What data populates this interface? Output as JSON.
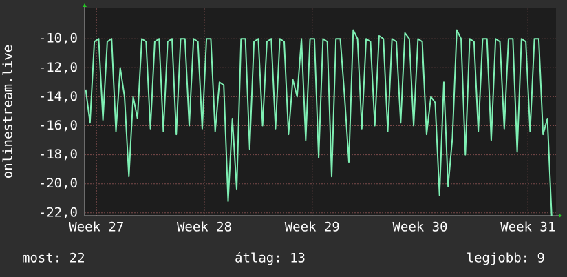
{
  "chart_data": {
    "type": "line",
    "y_label": "onlinestream.live",
    "xlim": [
      26.89,
      31.26
    ],
    "xticks": [
      {
        "value": 27,
        "label": "Week 27"
      },
      {
        "value": 28,
        "label": "Week 28"
      },
      {
        "value": 29,
        "label": "Week 29"
      },
      {
        "value": 30,
        "label": "Week 30"
      },
      {
        "value": 31,
        "label": "Week 31"
      }
    ],
    "ylim": [
      -22.2,
      -7.9
    ],
    "yticks": [
      {
        "value": -22,
        "label": "-22,0"
      },
      {
        "value": -20,
        "label": "-20,0"
      },
      {
        "value": -18,
        "label": "-18,0"
      },
      {
        "value": -16,
        "label": "-16,0"
      },
      {
        "value": -14,
        "label": "-14,0"
      },
      {
        "value": -12,
        "label": "-12,0"
      },
      {
        "value": -10,
        "label": "-10,0"
      }
    ],
    "grid": true,
    "x": [
      26.9,
      26.94,
      26.98,
      27.02,
      27.06,
      27.1,
      27.14,
      27.18,
      27.22,
      27.26,
      27.3,
      27.34,
      27.38,
      27.42,
      27.46,
      27.5,
      27.54,
      27.58,
      27.62,
      27.66,
      27.7,
      27.74,
      27.78,
      27.82,
      27.86,
      27.9,
      27.94,
      27.98,
      28.02,
      28.06,
      28.1,
      28.14,
      28.18,
      28.22,
      28.26,
      28.3,
      28.34,
      28.38,
      28.42,
      28.46,
      28.5,
      28.54,
      28.58,
      28.62,
      28.66,
      28.7,
      28.74,
      28.78,
      28.82,
      28.86,
      28.9,
      28.94,
      28.98,
      29.02,
      29.06,
      29.1,
      29.14,
      29.18,
      29.22,
      29.26,
      29.3,
      29.34,
      29.38,
      29.42,
      29.46,
      29.5,
      29.54,
      29.58,
      29.62,
      29.66,
      29.7,
      29.74,
      29.78,
      29.82,
      29.86,
      29.9,
      29.94,
      29.98,
      30.02,
      30.06,
      30.1,
      30.14,
      30.18,
      30.22,
      30.26,
      30.3,
      30.34,
      30.38,
      30.42,
      30.46,
      30.5,
      30.54,
      30.58,
      30.62,
      30.66,
      30.7,
      30.74,
      30.78,
      30.82,
      30.86,
      30.9,
      30.94,
      30.98,
      31.02,
      31.06,
      31.1,
      31.14,
      31.18,
      31.22
    ],
    "series": [
      {
        "color": "#7ff0b4",
        "values": [
          -13.5,
          -15.8,
          -10.2,
          -10.0,
          -15.6,
          -10.2,
          -10.0,
          -16.4,
          -12.0,
          -14.0,
          -19.5,
          -14.0,
          -15.5,
          -10.0,
          -10.2,
          -16.2,
          -10.2,
          -10.0,
          -16.4,
          -10.2,
          -10.0,
          -16.6,
          -10.0,
          -10.0,
          -16.0,
          -10.0,
          -10.2,
          -16.2,
          -10.0,
          -10.0,
          -16.4,
          -13.0,
          -13.2,
          -21.2,
          -15.5,
          -20.4,
          -10.0,
          -10.0,
          -17.6,
          -10.2,
          -10.0,
          -16.0,
          -10.2,
          -10.0,
          -16.2,
          -10.0,
          -10.2,
          -16.6,
          -12.8,
          -14.0,
          -10.0,
          -17.0,
          -10.0,
          -10.0,
          -18.2,
          -10.0,
          -10.2,
          -19.5,
          -10.0,
          -10.0,
          -14.0,
          -18.5,
          -9.4,
          -10.0,
          -16.2,
          -10.0,
          -10.2,
          -16.0,
          -9.8,
          -10.0,
          -16.4,
          -10.0,
          -10.2,
          -15.8,
          -9.6,
          -10.0,
          -16.0,
          -10.0,
          -10.2,
          -16.6,
          -14.0,
          -14.4,
          -20.8,
          -13.0,
          -20.2,
          -16.8,
          -9.4,
          -10.0,
          -18.0,
          -10.0,
          -10.2,
          -16.4,
          -10.0,
          -10.0,
          -17.0,
          -10.0,
          -10.2,
          -16.2,
          -10.0,
          -10.0,
          -17.8,
          -10.0,
          -10.2,
          -16.4,
          -10.0,
          -10.0,
          -16.6,
          -15.5,
          -22.2
        ]
      }
    ]
  },
  "footer": {
    "current": "most: 22",
    "average": "átlag: 13",
    "best": "legjobb: 9"
  }
}
